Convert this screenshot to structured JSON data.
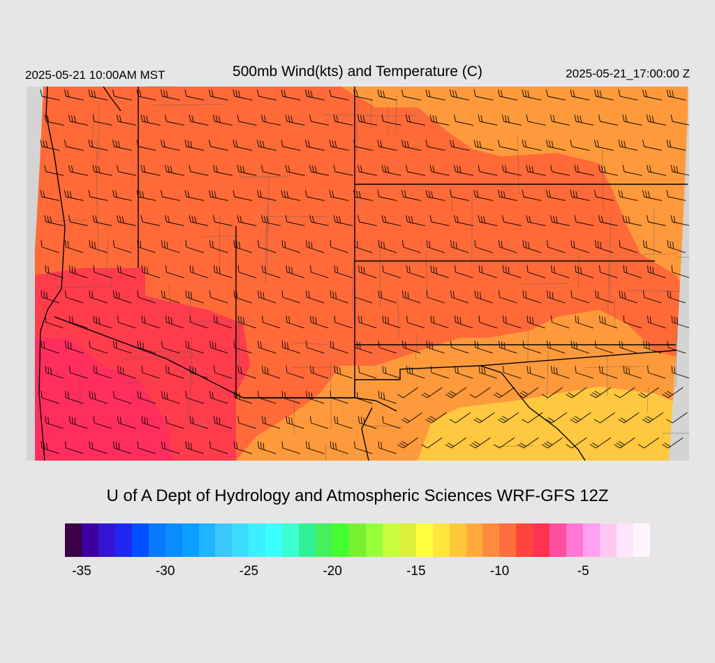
{
  "header": {
    "valid_local": "2025-05-21 10:00AM MST",
    "title": "500mb Wind(kts) and Temperature (C)",
    "valid_utc": "2025-05-21_17:00:00 Z"
  },
  "map": {
    "variable": "500mb temperature (C) shaded, wind barbs (kts)",
    "colors": {
      "background": "#d4d4d4",
      "temp_warm_core": "#ff9a3c",
      "temp_mid": "#ff6a38",
      "temp_cold": "#ff3c4c",
      "temp_coldest": "#ff2e5c",
      "temp_south": "#ffc840",
      "boundary": "#000000",
      "counties": "#5a5a5a"
    }
  },
  "credit": "U of A Dept of Hydrology and Atmospheric Sciences WRF-GFS 12Z",
  "colorbar": {
    "colors": [
      "#3c0046",
      "#3c00a0",
      "#3214d2",
      "#1e28f0",
      "#0050ff",
      "#0a78ff",
      "#0a8cff",
      "#0aa0ff",
      "#1eb4ff",
      "#3cc8ff",
      "#3cdcff",
      "#3cf0ff",
      "#3cffff",
      "#3cffd2",
      "#32f096",
      "#46f05a",
      "#46ff32",
      "#78f032",
      "#96ff3c",
      "#c8ff3c",
      "#dcf03c",
      "#ffff3c",
      "#ffe63c",
      "#ffc83c",
      "#ffaa3c",
      "#ff8c3c",
      "#ff6e3c",
      "#ff463c",
      "#ff3250",
      "#ff50a0",
      "#ff78d2",
      "#ffa0f0",
      "#ffc8f0",
      "#ffe6ff",
      "#fff5ff"
    ],
    "labels": [
      {
        "text": "-35",
        "index": 1
      },
      {
        "text": "-30",
        "index": 6
      },
      {
        "text": "-25",
        "index": 11
      },
      {
        "text": "-20",
        "index": 16
      },
      {
        "text": "-15",
        "index": 21
      },
      {
        "text": "-10",
        "index": 26
      },
      {
        "text": "-5",
        "index": 31
      }
    ]
  }
}
